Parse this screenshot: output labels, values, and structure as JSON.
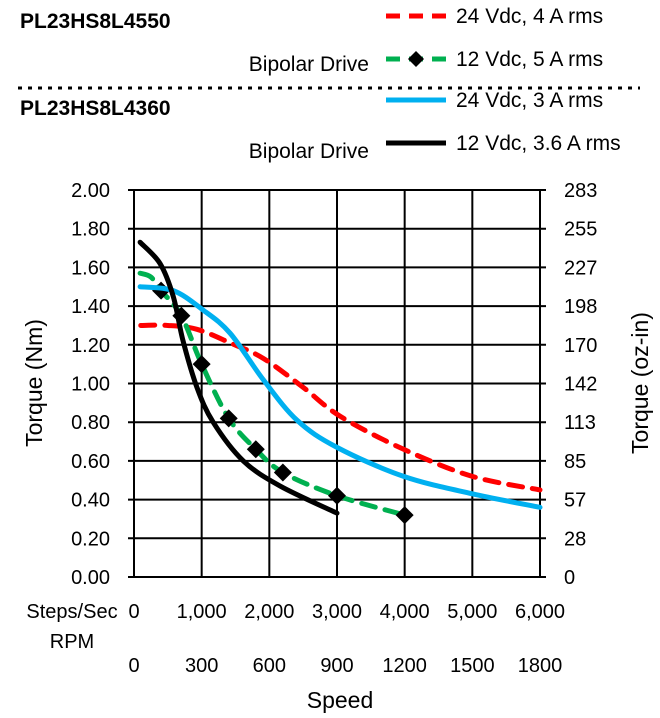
{
  "chart_data": {
    "type": "line",
    "headers": [
      {
        "model": "PL23HS8L4550",
        "drive": "Bipolar Drive"
      },
      {
        "model": "PL23HS8L4360",
        "drive": "Bipolar Drive"
      }
    ],
    "xlabel": "Speed",
    "x_axis_labels": {
      "steps": "Steps/Sec",
      "rpm": "RPM"
    },
    "x_ticks_steps": [
      "0",
      "1,000",
      "2,000",
      "3,000",
      "4,000",
      "5,000",
      "6,000"
    ],
    "x_ticks_rpm": [
      "0",
      "300",
      "600",
      "900",
      "1200",
      "1500",
      "1800"
    ],
    "xlim": [
      0,
      6000
    ],
    "ylabel": "Torque (Nm)",
    "ylabel_right": "Torque (oz-in)",
    "ylim": [
      0,
      2.0
    ],
    "y_ticks": [
      "0.00",
      "0.20",
      "0.40",
      "0.60",
      "0.80",
      "1.00",
      "1.20",
      "1.40",
      "1.60",
      "1.80",
      "2.00"
    ],
    "y_ticks_right": [
      "0",
      "28",
      "57",
      "85",
      "113",
      "142",
      "170",
      "198",
      "227",
      "255",
      "283"
    ],
    "grid": true,
    "legend_placement": "top-right",
    "series": [
      {
        "name": "24 Vdc, 4 A rms",
        "color": "#ff0000",
        "style": "dashed",
        "x": [
          100,
          500,
          930,
          1420,
          1910,
          2500,
          3050,
          3985,
          5000,
          6000
        ],
        "y": [
          1.3,
          1.3,
          1.28,
          1.21,
          1.13,
          0.98,
          0.83,
          0.66,
          0.52,
          0.45
        ]
      },
      {
        "name": "12 Vdc, 5 A rms",
        "color": "#00b050",
        "style": "dashed-markers",
        "x": [
          90,
          250,
          400,
          700,
          1000,
          1400,
          1800,
          2200,
          3000,
          4000
        ],
        "y": [
          1.57,
          1.55,
          1.48,
          1.35,
          1.1,
          0.82,
          0.66,
          0.54,
          0.42,
          0.32
        ],
        "markers": [
          [
            400,
            1.48
          ],
          [
            700,
            1.35
          ],
          [
            1000,
            1.1
          ],
          [
            1400,
            0.82
          ],
          [
            1800,
            0.66
          ],
          [
            2200,
            0.54
          ],
          [
            3000,
            0.42
          ],
          [
            4000,
            0.32
          ]
        ]
      },
      {
        "name": "24 Vdc, 3 A rms",
        "color": "#00b0f0",
        "style": "solid",
        "x": [
          90,
          580,
          1020,
          1420,
          1910,
          2410,
          3000,
          3985,
          5000,
          6000
        ],
        "y": [
          1.5,
          1.48,
          1.38,
          1.26,
          1.02,
          0.81,
          0.67,
          0.52,
          0.43,
          0.36
        ]
      },
      {
        "name": "12 Vdc, 3.6 A rms",
        "color": "#000000",
        "style": "solid",
        "x": [
          90,
          385,
          580,
          725,
          930,
          1170,
          1615,
          2160,
          3000
        ],
        "y": [
          1.73,
          1.62,
          1.45,
          1.22,
          0.98,
          0.8,
          0.6,
          0.47,
          0.33
        ]
      }
    ]
  }
}
